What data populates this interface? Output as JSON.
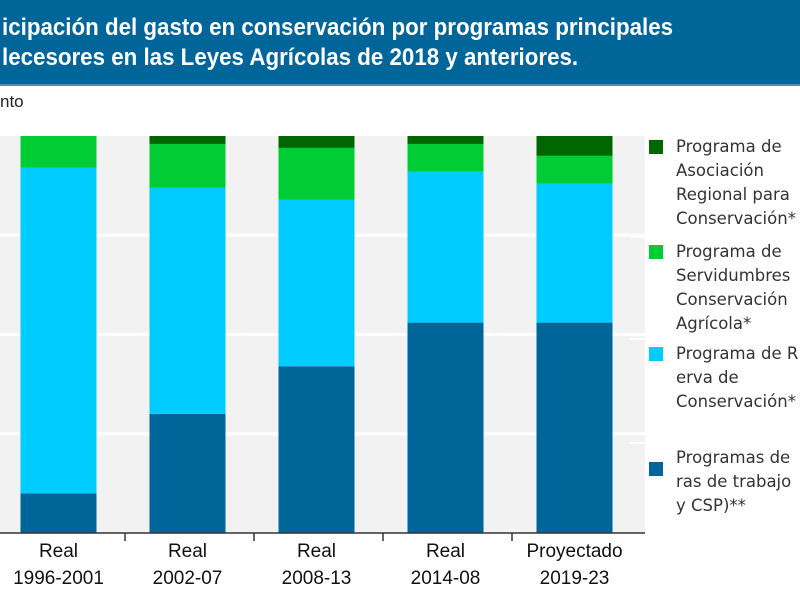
{
  "title_lines": [
    "icipación del gasto en conservación por programas principales",
    "lecesores en las Leyes Agrícolas de 2018 y anteriores."
  ],
  "chart_data": {
    "type": "bar",
    "stacked": true,
    "ylabel": "nto",
    "ylim": [
      0,
      100
    ],
    "grid": true,
    "legend_placement": "right",
    "categories": [
      [
        "Real",
        "1996-2001"
      ],
      [
        "Real",
        "2002-07"
      ],
      [
        "Real",
        "2008-13"
      ],
      [
        "Real",
        "2014-08"
      ],
      [
        "Proyectado",
        "2019-23"
      ]
    ],
    "series": [
      {
        "name": [
          "Programas de",
          "ras de trabajo",
          "y CSP)**"
        ],
        "color": "#006699",
        "values": [
          10,
          30,
          42,
          53,
          53
        ]
      },
      {
        "name": [
          "Programa de R",
          "erva de",
          "Conservación*"
        ],
        "color": "#00ccff",
        "values": [
          82,
          57,
          42,
          38,
          35
        ]
      },
      {
        "name": [
          "Programa de",
          "Servidumbres",
          "Conservación",
          "Agrícola*"
        ],
        "color": "#00cc33",
        "values": [
          8,
          11,
          13,
          7,
          7
        ]
      },
      {
        "name": [
          "Programa de",
          "Asociación",
          "Regional para",
          "Conservación*"
        ],
        "color": "#006600",
        "values": [
          0,
          2,
          3,
          2,
          5
        ]
      }
    ]
  }
}
